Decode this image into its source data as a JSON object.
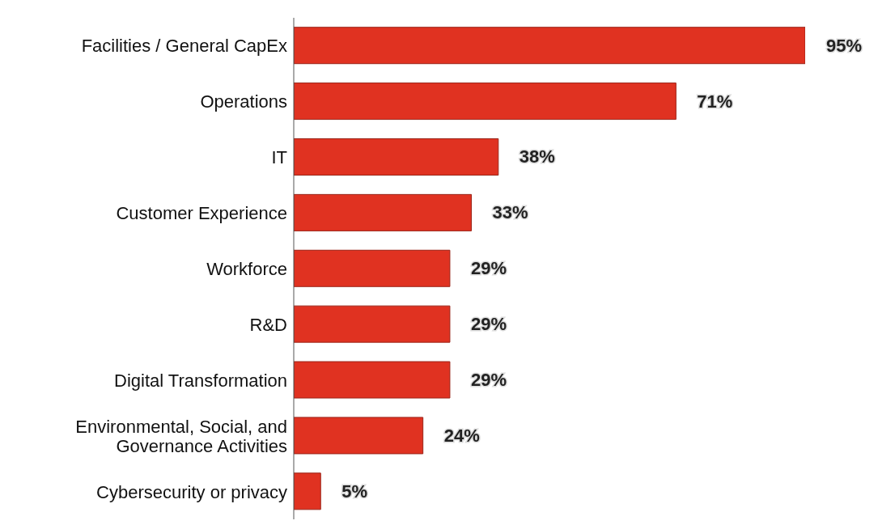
{
  "chart_data": {
    "type": "bar",
    "orientation": "horizontal",
    "categories": [
      "Facilities / General CapEx",
      "Operations",
      "IT",
      "Customer Experience",
      "Workforce",
      "R&D",
      "Digital Transformation",
      "Environmental, Social, and Governance Activities",
      "Cybersecurity or privacy"
    ],
    "values": [
      95,
      71,
      38,
      33,
      29,
      29,
      29,
      24,
      5
    ],
    "value_labels": [
      "95%",
      "71%",
      "38%",
      "33%",
      "29%",
      "29%",
      "29%",
      "24%",
      "5%"
    ],
    "color": "#e03221",
    "tick_labels": "y",
    "grid": false,
    "legend": false
  }
}
